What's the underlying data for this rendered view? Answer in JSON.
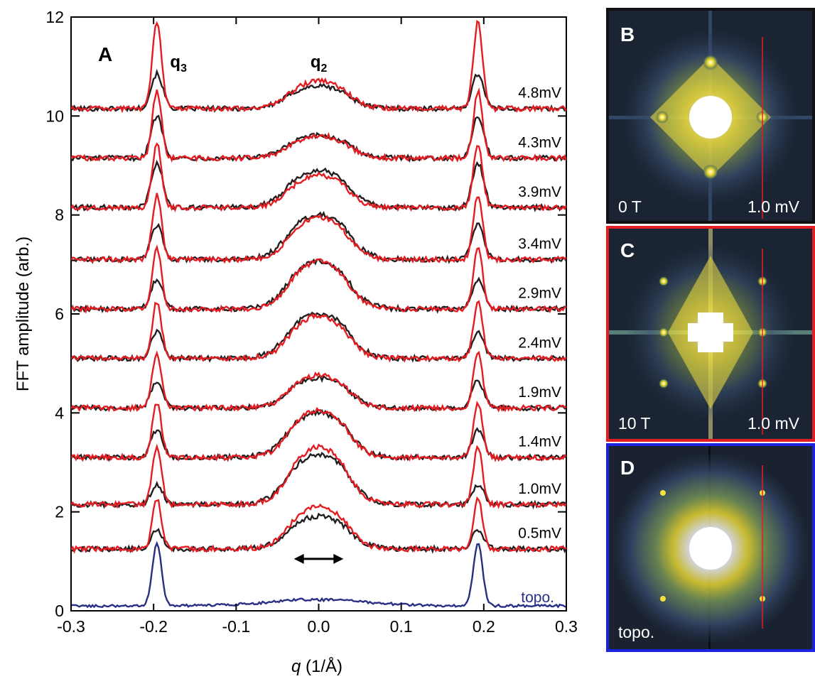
{
  "chart_data": [
    {
      "type": "line",
      "panel_label": "A",
      "xlabel_var": "q",
      "xlabel_unit": " (1/Å)",
      "ylabel": "FFT amplitude (arb.)",
      "xlim": [
        -0.3,
        0.3
      ],
      "ylim": [
        0,
        12
      ],
      "x_ticks": [
        "-0.3",
        "-0.2",
        "-0.1",
        "0.0",
        "0.1",
        "0.2",
        "0.3"
      ],
      "y_ticks": [
        "0",
        "2",
        "4",
        "6",
        "8",
        "10",
        "12"
      ],
      "peak_labels": [
        {
          "text": "q",
          "sub": "3",
          "x": -0.18
        },
        {
          "text": "q",
          "sub": "2",
          "x": -0.01
        }
      ],
      "colors": {
        "zero_field": "#231f20",
        "ten_tesla": "#e41d22",
        "topo": "#2a2f86"
      },
      "series": [
        {
          "label": "4.8mV",
          "offset": 10.15,
          "q3_black": 0.7,
          "q3_red": 1.75,
          "q2_black": 0.45,
          "q2_red": 0.55
        },
        {
          "label": "4.3mV",
          "offset": 9.15,
          "q3_black": 0.85,
          "q3_red": 1.35,
          "q2_black": 0.45,
          "q2_red": 0.45
        },
        {
          "label": "3.9mV",
          "offset": 8.15,
          "q3_black": 0.9,
          "q3_red": 1.3,
          "q2_black": 0.75,
          "q2_red": 0.65
        },
        {
          "label": "3.4mV",
          "offset": 7.1,
          "q3_black": 0.7,
          "q3_red": 1.3,
          "q2_black": 0.9,
          "q2_red": 0.85
        },
        {
          "label": "2.9mV",
          "offset": 6.1,
          "q3_black": 0.6,
          "q3_red": 1.25,
          "q2_black": 0.95,
          "q2_red": 0.95
        },
        {
          "label": "2.4mV",
          "offset": 5.1,
          "q3_black": 0.55,
          "q3_red": 1.15,
          "q2_black": 0.9,
          "q2_red": 0.85
        },
        {
          "label": "1.9mV",
          "offset": 4.1,
          "q3_black": 0.55,
          "q3_red": 1.1,
          "q2_black": 0.6,
          "q2_red": 0.65
        },
        {
          "label": "1.4mV",
          "offset": 3.1,
          "q3_black": 0.55,
          "q3_red": 1.1,
          "q2_black": 0.9,
          "q2_red": 0.95
        },
        {
          "label": "1.0mV",
          "offset": 2.15,
          "q3_black": 0.4,
          "q3_red": 1.15,
          "q2_black": 1.0,
          "q2_red": 1.15
        },
        {
          "label": "0.5mV",
          "offset": 1.25,
          "q3_black": 0.4,
          "q3_red": 1.0,
          "q2_black": 0.65,
          "q2_red": 0.85
        }
      ],
      "topo": {
        "label": "topo.",
        "offset": 0.1,
        "q3_peak": 1.28
      },
      "arrow": {
        "x_start": -0.03,
        "x_end": 0.03,
        "y": 1.25
      }
    }
  ],
  "fft_panels": [
    {
      "label": "B",
      "left_text": "0 T",
      "right_text": "1.0 mV",
      "border": "#111111"
    },
    {
      "label": "C",
      "left_text": "10 T",
      "right_text": "1.0 mV",
      "border": "#e41d22"
    },
    {
      "label": "D",
      "left_text": "topo.",
      "right_text": "",
      "border": "#1b22e0"
    }
  ]
}
